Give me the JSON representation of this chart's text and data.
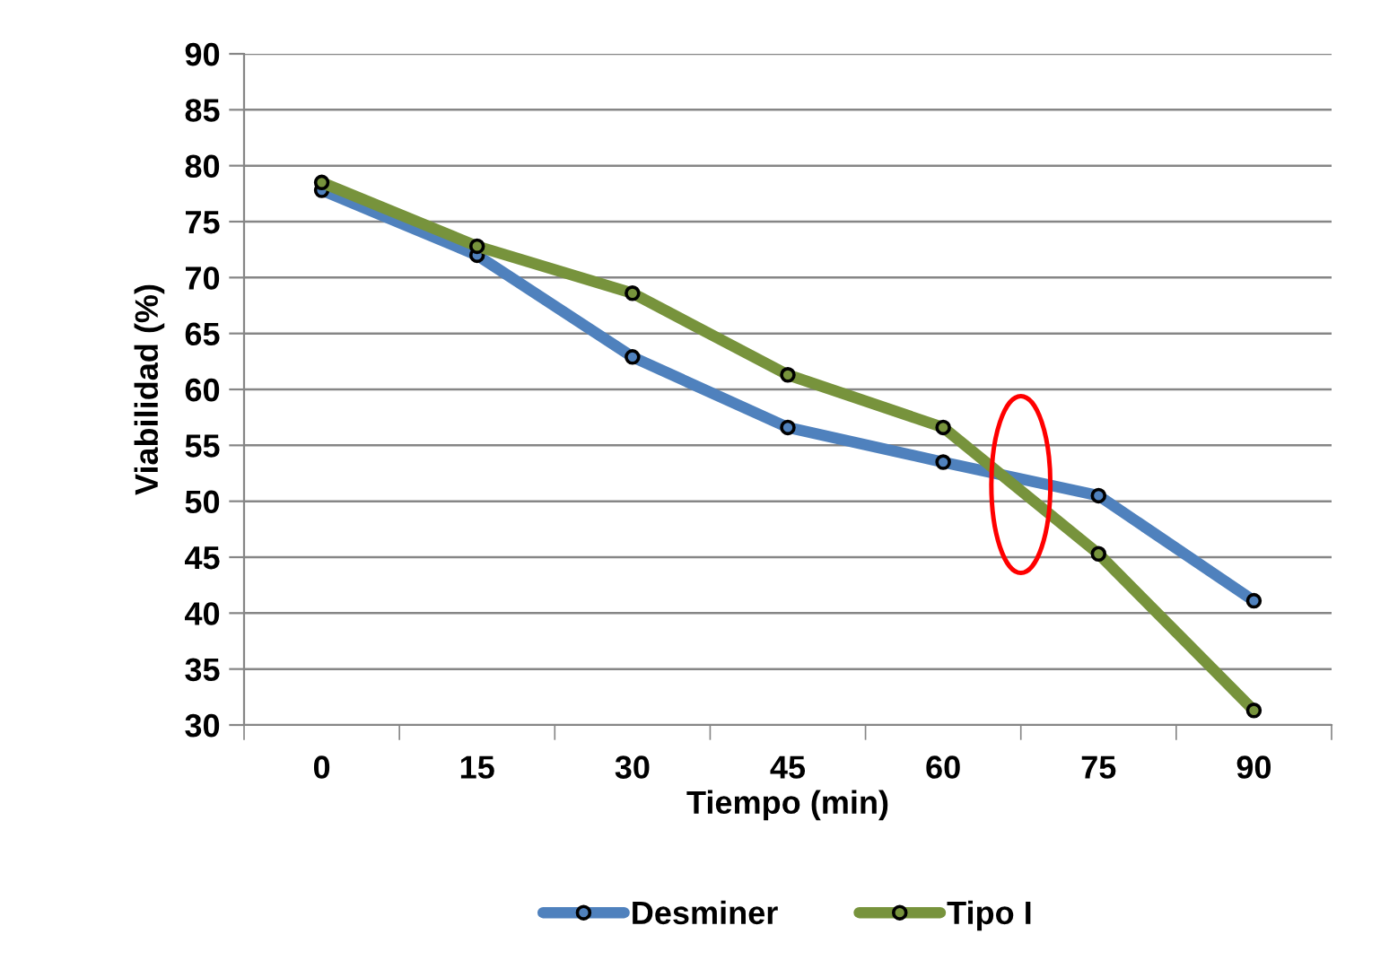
{
  "chart_data": {
    "type": "line",
    "xlabel": "Tiempo (min)",
    "ylabel": "Viabilidad (%)",
    "categories": [
      "0",
      "15",
      "30",
      "45",
      "60",
      "75",
      "90"
    ],
    "series": [
      {
        "name": "Desminer",
        "color": "#4f81bd",
        "values": [
          77.8,
          72.0,
          62.9,
          56.6,
          53.5,
          50.5,
          41.1
        ]
      },
      {
        "name": "Tipo I",
        "color": "#77933c",
        "values": [
          78.5,
          72.8,
          68.6,
          61.3,
          56.6,
          45.3,
          31.3
        ]
      }
    ],
    "ylim": [
      30,
      90
    ],
    "yticks": [
      30,
      35,
      40,
      45,
      50,
      55,
      60,
      65,
      70,
      75,
      80,
      85,
      90
    ],
    "grid": "y",
    "legend": "bottom",
    "marker": "circle",
    "line_style": "solid"
  }
}
